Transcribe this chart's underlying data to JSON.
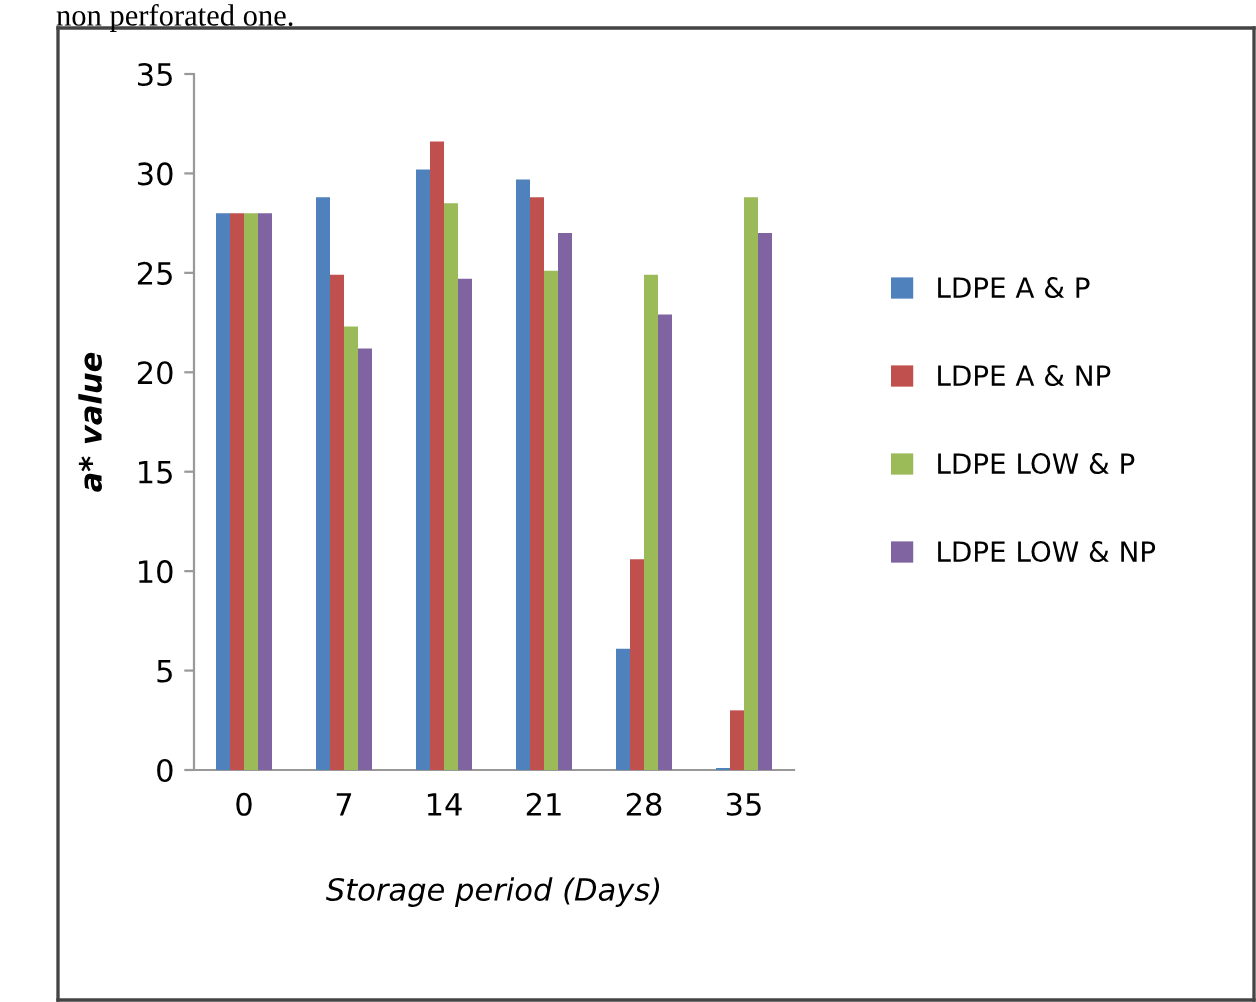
{
  "chart_data": {
    "type": "bar",
    "xlabel": "Storage period (Days)",
    "ylabel": "a* value",
    "categories": [
      "0",
      "7",
      "14",
      "21",
      "28",
      "35"
    ],
    "series": [
      {
        "name": "LDPE A & P",
        "color": "#4f81bd",
        "values": [
          28,
          28.8,
          30.2,
          29.7,
          6.1,
          0.1
        ]
      },
      {
        "name": "LDPE A & NP",
        "color": "#c0504d",
        "values": [
          28,
          24.9,
          31.6,
          28.8,
          10.6,
          3.0
        ]
      },
      {
        "name": "LDPE LOW & P",
        "color": "#9bbb59",
        "values": [
          28,
          22.3,
          28.5,
          25.1,
          24.9,
          28.8
        ]
      },
      {
        "name": "LDPE LOW & NP",
        "color": "#8064a2",
        "values": [
          28,
          21.2,
          24.7,
          27.0,
          22.9,
          27.0
        ]
      }
    ],
    "ylim": [
      0,
      35
    ],
    "yticks": [
      0,
      5,
      10,
      15,
      20,
      25,
      30,
      35
    ],
    "grid": false,
    "legend": "right",
    "annotations": [
      "non perforated one."
    ]
  }
}
